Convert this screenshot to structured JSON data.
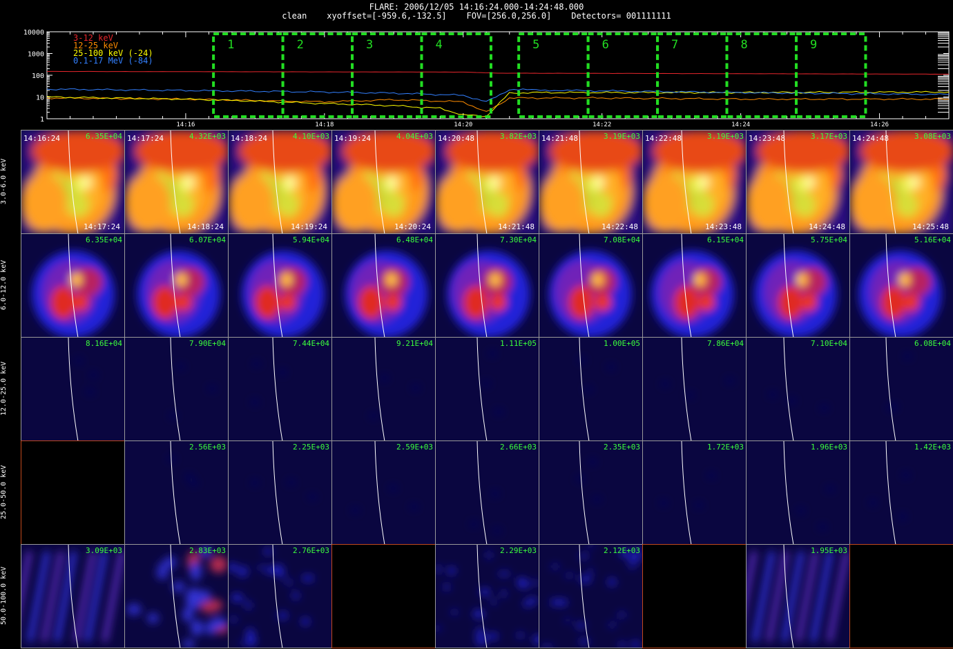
{
  "header": {
    "title": "FLARE: 2006/12/05 14:16:24.000-14:24:48.000",
    "subtitle": "clean    xyoffset=[-959.6,-132.5]    FOV=[256.0,256.0]    Detectors= 001111111"
  },
  "colors": {
    "green_box": "#22dd22",
    "peak_text": "#3cff3c",
    "limb": "#ffffff"
  },
  "chart_data": [
    {
      "type": "line",
      "title": "",
      "yscale": "log",
      "ylim": [
        1,
        10000
      ],
      "y_tick_labels": [
        "1",
        "10",
        "100",
        "1000",
        "10000"
      ],
      "x_tick_labels": [
        "14:16",
        "14:18",
        "14:20",
        "14:22",
        "14:24",
        "14:26"
      ],
      "xlim": [
        "14:14:00",
        "14:27:00"
      ],
      "legend": [
        {
          "label": "3-12 keV",
          "color": "#e8262c"
        },
        {
          "label": "12-25 keV",
          "color": "#ff8c00"
        },
        {
          "label": "25-100 keV (-24)",
          "color": "#ffff00"
        },
        {
          "label": "0.1-17 MeV (-84)",
          "color": "#3380ff"
        }
      ],
      "series": [
        {
          "name": "3-12 keV",
          "color": "#e8262c",
          "x": [
            "14:14:00",
            "14:20:00",
            "14:20:30",
            "14:27:00"
          ],
          "y": [
            150,
            140,
            125,
            112
          ]
        },
        {
          "name": "12-25 keV",
          "color": "#ff8c00",
          "x": [
            "14:14:00",
            "14:16:00",
            "14:18:00",
            "14:19:00",
            "14:20:00",
            "14:20:20",
            "14:20:40",
            "14:22:00",
            "14:24:00",
            "14:27:00"
          ],
          "y": [
            9,
            8,
            6,
            7.5,
            6,
            2,
            9,
            9,
            8,
            8
          ]
        },
        {
          "name": "25-100 keV (-24)",
          "color": "#ffff00",
          "x": [
            "14:14:00",
            "14:16:00",
            "14:17:00",
            "14:18:00",
            "14:19:00",
            "14:19:40",
            "14:20:00",
            "14:20:20",
            "14:20:40",
            "14:21:00",
            "14:24:00",
            "14:27:00"
          ],
          "y": [
            10,
            8,
            6.5,
            5,
            4,
            3,
            1.5,
            1.3,
            15,
            16,
            16,
            17
          ]
        },
        {
          "name": "0.1-17 MeV (-84)",
          "color": "#3380ff",
          "x": [
            "14:14:00",
            "14:16:00",
            "14:18:00",
            "14:19:00",
            "14:20:00",
            "14:20:20",
            "14:20:40",
            "14:21:30",
            "14:24:00",
            "14:27:00"
          ],
          "y": [
            23,
            20,
            17,
            15,
            12,
            6,
            22,
            20,
            16,
            13
          ]
        }
      ],
      "interval_boxes": [
        {
          "label": "1",
          "start": "14:16:24",
          "end": "14:17:24"
        },
        {
          "label": "2",
          "start": "14:17:24",
          "end": "14:18:24"
        },
        {
          "label": "3",
          "start": "14:18:24",
          "end": "14:19:24"
        },
        {
          "label": "4",
          "start": "14:19:24",
          "end": "14:20:24"
        },
        {
          "label": "5",
          "start": "14:20:48",
          "end": "14:21:48"
        },
        {
          "label": "6",
          "start": "14:21:48",
          "end": "14:22:48"
        },
        {
          "label": "7",
          "start": "14:22:48",
          "end": "14:23:48"
        },
        {
          "label": "8",
          "start": "14:23:48",
          "end": "14:24:48"
        },
        {
          "label": "9",
          "start": "14:24:48",
          "end": "14:25:48"
        }
      ]
    },
    {
      "type": "heatmap",
      "title": "",
      "rows": [
        "3.0-6.0 keV",
        "6.0-12.0 keV",
        "12.0-25.0 keV",
        "25.0-50.0 keV",
        "50.0-100.0 keV"
      ],
      "interval_start": [
        "14:16:24",
        "14:17:24",
        "14:18:24",
        "14:19:24",
        "14:20:48",
        "14:21:48",
        "14:22:48",
        "14:23:48",
        "14:24:48"
      ],
      "interval_end": [
        "14:17:24",
        "14:18:24",
        "14:19:24",
        "14:20:24",
        "14:21:48",
        "14:22:48",
        "14:23:48",
        "14:24:48",
        "14:25:48"
      ],
      "peaks": [
        [
          "6.35E+04",
          "4.32E+03",
          "4.10E+03",
          "4.04E+03",
          "3.82E+03",
          "3.19E+03",
          "3.19E+03",
          "3.17E+03",
          "3.08E+03"
        ],
        [
          "6.35E+04",
          "6.07E+04",
          "5.94E+04",
          "6.48E+04",
          "7.30E+04",
          "7.08E+04",
          "6.15E+04",
          "5.75E+04",
          "5.16E+04"
        ],
        [
          "8.16E+04",
          "7.90E+04",
          "7.44E+04",
          "9.21E+04",
          "1.11E+05",
          "1.00E+05",
          "7.86E+04",
          "7.10E+04",
          "6.08E+04"
        ],
        [
          "",
          "2.56E+03",
          "2.25E+03",
          "2.59E+03",
          "2.66E+03",
          "2.35E+03",
          "1.72E+03",
          "1.96E+03",
          "1.42E+03"
        ],
        [
          "3.09E+03",
          "2.83E+03",
          "2.76E+03",
          "",
          "2.29E+03",
          "2.12E+03",
          "",
          "1.95E+03",
          ""
        ]
      ],
      "image_style": [
        [
          "thermal",
          "thermal",
          "thermal",
          "thermal",
          "thermal",
          "thermal",
          "thermal",
          "thermal",
          "thermal"
        ],
        [
          "mid",
          "mid",
          "mid",
          "mid",
          "mid",
          "mid",
          "mid",
          "mid",
          "mid"
        ],
        [
          "faint",
          "faint",
          "faint",
          "faint",
          "faint",
          "faint",
          "faint",
          "faint",
          "faint"
        ],
        [
          "none",
          "faint",
          "faint",
          "faint",
          "faint",
          "faint",
          "faint",
          "faint",
          "faint"
        ],
        [
          "streaks",
          "patches",
          "noise",
          "none",
          "noise",
          "noise",
          "none",
          "streaks",
          "none"
        ]
      ]
    }
  ]
}
